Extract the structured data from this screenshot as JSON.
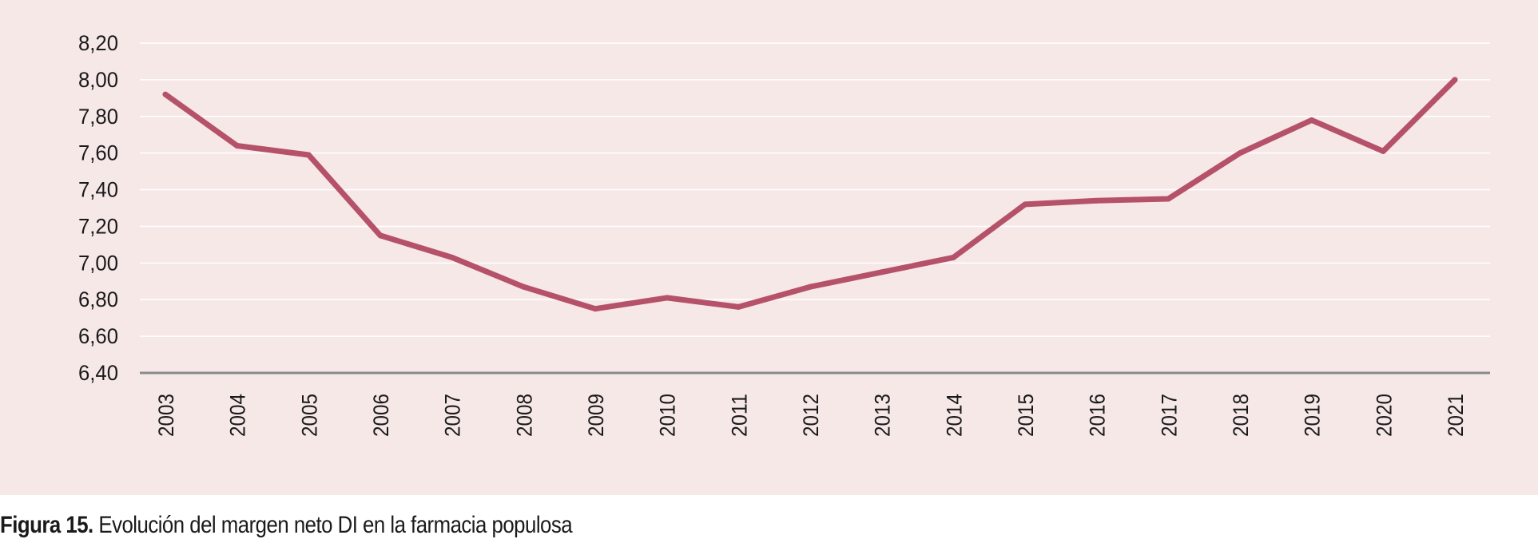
{
  "chart_data": {
    "type": "line",
    "categories": [
      "2003",
      "2004",
      "2005",
      "2006",
      "2007",
      "2008",
      "2009",
      "2010",
      "2011",
      "2012",
      "2013",
      "2014",
      "2015",
      "2016",
      "2017",
      "2018",
      "2019",
      "2020",
      "2021"
    ],
    "series": [
      {
        "values": [
          7.92,
          7.64,
          7.59,
          7.15,
          7.03,
          6.87,
          6.75,
          6.81,
          6.76,
          6.87,
          6.95,
          7.03,
          7.32,
          7.34,
          7.35,
          7.6,
          7.78,
          7.61,
          8.0
        ],
        "color": "#b5526a"
      }
    ],
    "y_ticks": [
      "6,40",
      "6,60",
      "6,80",
      "7,00",
      "7,20",
      "7,40",
      "7,60",
      "7,80",
      "8,00",
      "8,20"
    ],
    "ylim": [
      6.4,
      8.2
    ],
    "grid": true,
    "legend": "none",
    "colors": {
      "background": "#f7e8e8",
      "gridline": "#ffffff",
      "axis": "#8a8a8a",
      "line": "#b5526a"
    }
  },
  "caption": {
    "label": "Figura 15.",
    "text": " Evolución del margen neto DI en la farmacia populosa"
  }
}
